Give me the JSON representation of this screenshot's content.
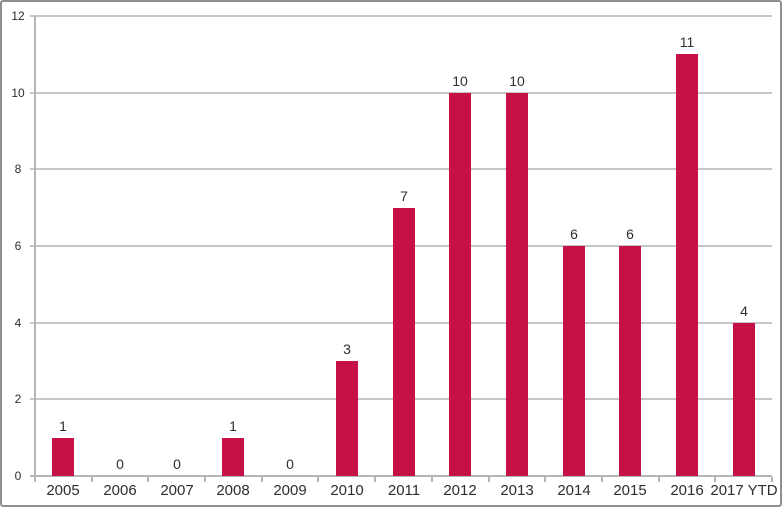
{
  "chart_data": {
    "type": "bar",
    "title": "",
    "xlabel": "",
    "ylabel": "",
    "categories": [
      "2005",
      "2006",
      "2007",
      "2008",
      "2009",
      "2010",
      "2011",
      "2012",
      "2013",
      "2014",
      "2015",
      "2016",
      "2017 YTD"
    ],
    "values": [
      1,
      0,
      0,
      1,
      0,
      3,
      7,
      10,
      10,
      6,
      6,
      11,
      4
    ],
    "ylim": [
      0,
      12
    ],
    "yticks": [
      0,
      2,
      4,
      6,
      8,
      10,
      12
    ],
    "grid": true,
    "legend": false,
    "bar_labels_shown": true,
    "colors": {
      "bar": "#c51145",
      "gridline": "#c6c6c6",
      "axis": "#b5b5b5",
      "text": "#2e2e2e",
      "frame_border": "#8f8f8f",
      "background": "#ffffff"
    }
  }
}
